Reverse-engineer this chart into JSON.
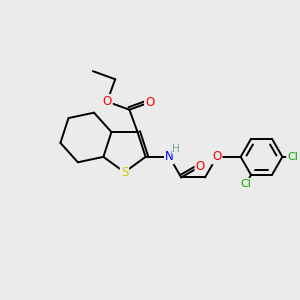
{
  "background_color": "#ebebeb",
  "atom_colors": {
    "C": "#000000",
    "H": "#7f9f9f",
    "N": "#0000ff",
    "O": "#ff0000",
    "S": "#cccc00",
    "Cl": "#00aa00"
  },
  "bond_color": "#000000",
  "bond_width": 1.4,
  "font_size_atom": 8.5,
  "figsize": [
    3.0,
    3.0
  ],
  "dpi": 100
}
